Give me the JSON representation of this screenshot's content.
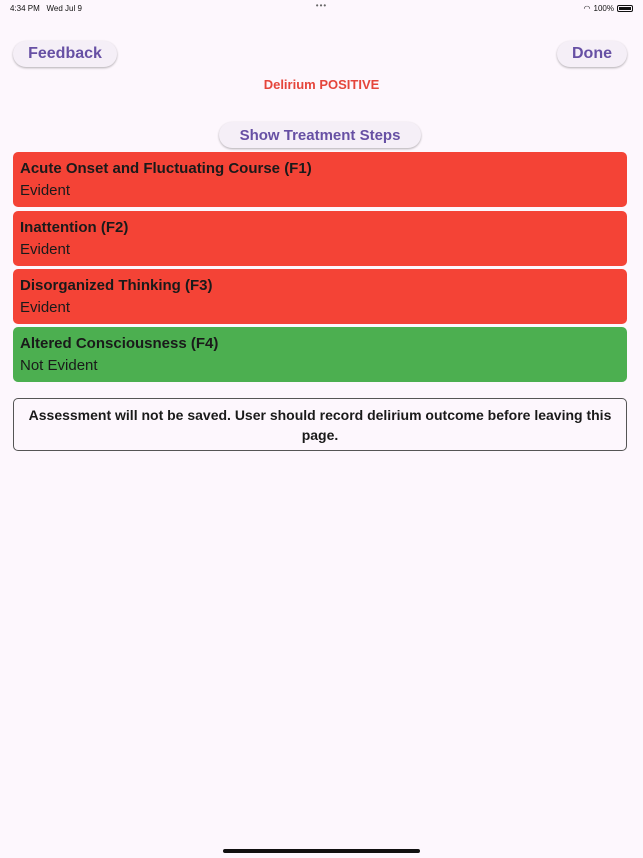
{
  "status_bar": {
    "time": "4:34 PM",
    "date": "Wed Jul 9",
    "dots": "•••",
    "battery": "100%",
    "battery_level": 1.0
  },
  "header": {
    "feedback_label": "Feedback",
    "done_label": "Done",
    "result": "Delirium POSITIVE",
    "result_color": "#e5453b"
  },
  "treatment_label": "Show Treatment Steps",
  "features": [
    {
      "title": "Acute Onset and Fluctuating Course (F1)",
      "status": "Evident",
      "color": "#f44336"
    },
    {
      "title": "Inattention (F2)",
      "status": "Evident",
      "color": "#f44336"
    },
    {
      "title": "Disorganized Thinking (F3)",
      "status": "Evident",
      "color": "#f44336"
    },
    {
      "title": "Altered Consciousness (F4)",
      "status": "Not Evident",
      "color": "#4caf50"
    }
  ],
  "notice": "Assessment will not be saved. User should record delirium outcome before leaving this page."
}
